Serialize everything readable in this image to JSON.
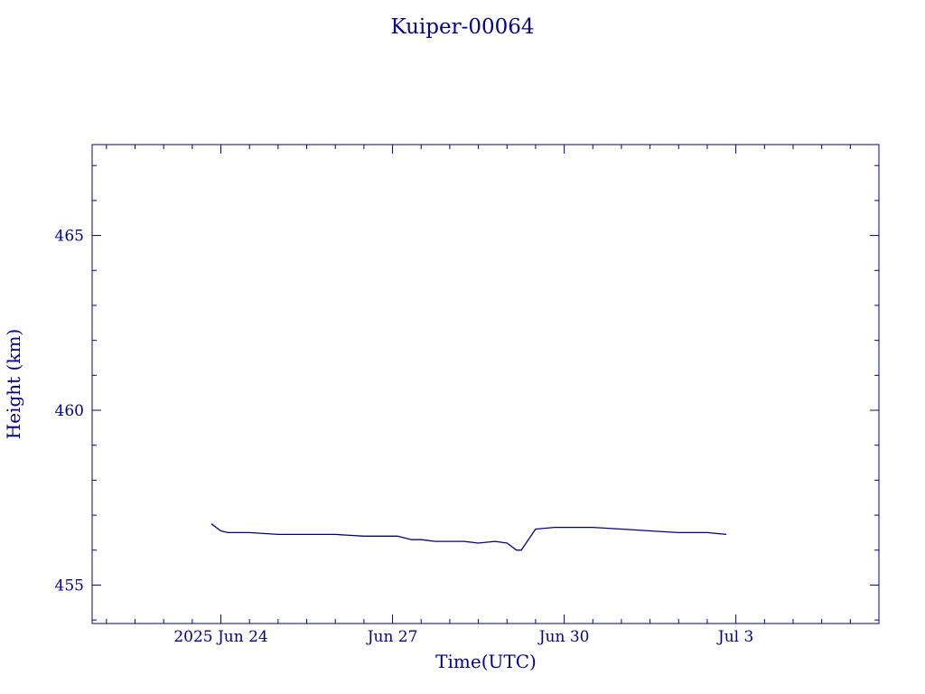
{
  "chart_data": {
    "type": "line",
    "title": "Kuiper-00064",
    "xlabel": "Time(UTC)",
    "ylabel": "Height (km)",
    "x_tick_labels": [
      "2025 Jun 24",
      "Jun 27",
      "Jun 30",
      "Jul  3"
    ],
    "x_tick_dates": [
      "2025-06-24T00:00",
      "2025-06-27T00:00",
      "2025-06-30T00:00",
      "2025-07-03T00:00"
    ],
    "xlim": [
      "2025-06-21T18:00",
      "2025-07-05T12:00"
    ],
    "y_tick_labels": [
      "455",
      "460",
      "465"
    ],
    "y_tick_values": [
      455,
      460,
      465
    ],
    "ylim": [
      453.9,
      467.6
    ],
    "grid": false,
    "color": "#00008b",
    "series": [
      {
        "x": [
          "2025-06-23T20:00",
          "2025-06-24T00:00",
          "2025-06-24T03:00",
          "2025-06-24T12:00",
          "2025-06-25T00:00",
          "2025-06-25T12:00",
          "2025-06-26T00:00",
          "2025-06-26T12:00",
          "2025-06-26T20:00",
          "2025-06-27T02:00",
          "2025-06-27T08:00",
          "2025-06-27T12:00",
          "2025-06-27T18:00",
          "2025-06-28T00:00",
          "2025-06-28T06:00",
          "2025-06-28T12:00",
          "2025-06-28T19:00",
          "2025-06-29T00:00",
          "2025-06-29T04:00",
          "2025-06-29T06:00",
          "2025-06-29T12:00",
          "2025-06-29T20:00",
          "2025-06-30T00:00",
          "2025-06-30T12:00",
          "2025-07-01T00:00",
          "2025-07-01T12:00",
          "2025-07-02T00:00",
          "2025-07-02T12:00",
          "2025-07-02T20:00"
        ],
        "y": [
          456.75,
          456.55,
          456.5,
          456.5,
          456.45,
          456.45,
          456.45,
          456.4,
          456.4,
          456.4,
          456.3,
          456.3,
          456.25,
          456.25,
          456.25,
          456.2,
          456.25,
          456.2,
          456.0,
          456.0,
          456.6,
          456.65,
          456.65,
          456.65,
          456.6,
          456.55,
          456.5,
          456.5,
          456.45
        ]
      }
    ]
  }
}
